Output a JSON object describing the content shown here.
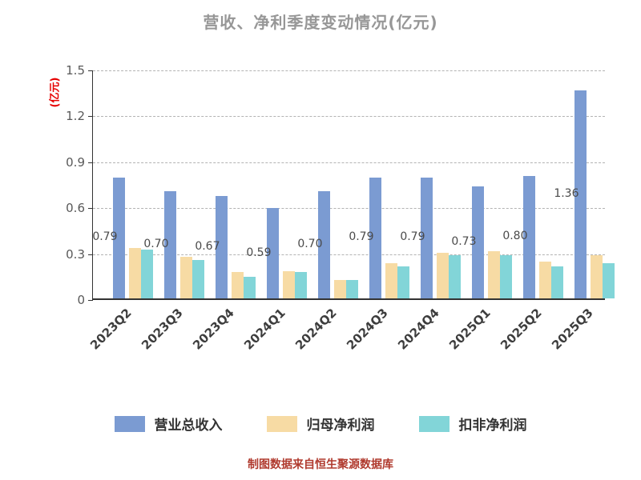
{
  "chart_data": {
    "type": "bar",
    "title": "营收、净利季度变动情况(亿元)",
    "ylabel": "(亿元)",
    "xlabel": "",
    "ylim": [
      0,
      1.5
    ],
    "yticks": [
      "0",
      "0.3",
      "0.6",
      "0.9",
      "1.2",
      "1.5"
    ],
    "grid": "dashed-horizontal",
    "legend_position": "bottom",
    "categories": [
      "2023Q2",
      "2023Q3",
      "2023Q4",
      "2024Q1",
      "2024Q2",
      "2024Q3",
      "2024Q4",
      "2025Q1",
      "2025Q2",
      "2025Q3"
    ],
    "series": [
      {
        "id": "revenue",
        "name": "营业总收入",
        "color": "#7b9bd2",
        "values": [
          0.79,
          0.7,
          0.67,
          0.59,
          0.7,
          0.79,
          0.79,
          0.73,
          0.8,
          1.36
        ],
        "labels": [
          "0.79",
          "0.70",
          "0.67",
          "0.59",
          "0.70",
          "0.79",
          "0.79",
          "0.73",
          "0.80",
          "1.36"
        ]
      },
      {
        "id": "net-profit",
        "name": "归母净利润",
        "color": "#f7dba4",
        "values": [
          0.33,
          0.27,
          0.17,
          0.18,
          0.12,
          0.23,
          0.3,
          0.31,
          0.24,
          0.28
        ]
      },
      {
        "id": "deducted-net-profit",
        "name": "扣非净利润",
        "color": "#82d5d8",
        "values": [
          0.32,
          0.25,
          0.14,
          0.17,
          0.12,
          0.21,
          0.28,
          0.28,
          0.21,
          0.23
        ]
      }
    ],
    "source_note": "制图数据来自恒生聚源数据库"
  }
}
